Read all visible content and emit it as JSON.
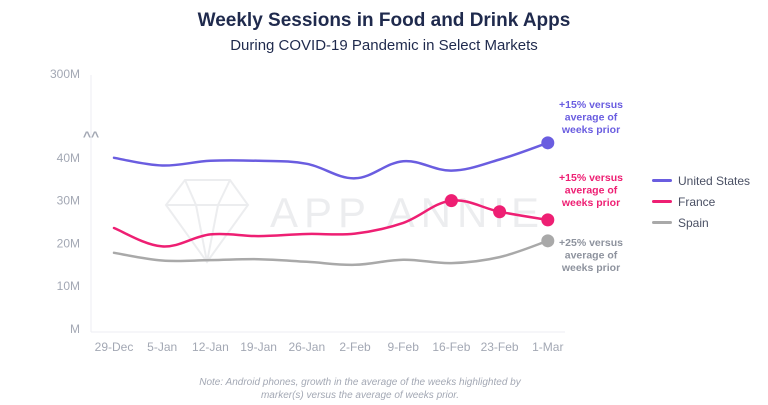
{
  "title": "Weekly Sessions in Food and Drink Apps",
  "subtitle": "During COVID-19 Pandemic in Select Markets",
  "watermark": "APP ANNIE",
  "note": "Note: Android phones, growth in the average of the weeks highlighted by\nmarker(s) versus the average of  weeks prior.",
  "colors": {
    "us": "#6a5de0",
    "france": "#ee1f73",
    "spain": "#a9a9a9",
    "axis_text": "#a3a8b4",
    "grid": "#eceef3"
  },
  "chart_data": {
    "type": "line",
    "title": "Weekly Sessions in Food and Drink Apps",
    "subtitle": "During COVID-19 Pandemic in Select Markets",
    "xlabel": "",
    "ylabel": "",
    "categories": [
      "29-Dec",
      "5-Jan",
      "12-Jan",
      "19-Jan",
      "26-Jan",
      "2-Feb",
      "9-Feb",
      "16-Feb",
      "23-Feb",
      "1-Mar"
    ],
    "y_ticks": [
      "M",
      "10M",
      "20M",
      "30M",
      "40M",
      "300M"
    ],
    "axis_break_symbol": "^^",
    "axis_break": true,
    "ylim": [
      0,
      45
    ],
    "grid": false,
    "legend_position": "right",
    "series": [
      {
        "name": "United States",
        "key": "us",
        "values": [
          40,
          38.2,
          39.3,
          39.3,
          38.6,
          35.2,
          39.2,
          37.0,
          39.6,
          43.5
        ],
        "markers": [
          9
        ]
      },
      {
        "name": "France",
        "key": "france",
        "values": [
          23.6,
          19.3,
          22.1,
          21.7,
          22.2,
          22.3,
          24.8,
          30.0,
          27.4,
          25.5
        ],
        "markers": [
          7,
          8,
          9
        ]
      },
      {
        "name": "Spain",
        "key": "spain",
        "values": [
          17.8,
          16.0,
          16.1,
          16.3,
          15.7,
          15.0,
          16.2,
          15.4,
          16.8,
          20.6
        ],
        "markers": [
          9
        ]
      }
    ],
    "annotations": [
      {
        "series": "us",
        "text": [
          "+15% versus",
          "average of",
          "weeks prior"
        ]
      },
      {
        "series": "france",
        "text": [
          "+15% versus",
          "average of",
          "weeks prior"
        ]
      },
      {
        "series": "spain",
        "text": [
          "+25% versus",
          "average of",
          "weeks prior"
        ]
      }
    ]
  }
}
